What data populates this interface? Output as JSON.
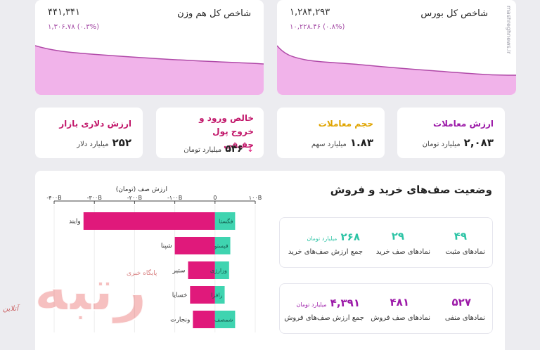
{
  "index_cards": [
    {
      "title": "شاخص کل بورس",
      "value": "۱,۲۸۴,۲۹۳",
      "change": "۱۰,۲۲۸.۴۶ (۰.۸%)"
    },
    {
      "title": "شاخص کل هم وزن",
      "value": "۴۴۱,۳۴۱",
      "change": "۱,۳۰۶.۷۸ (۰.۳%)"
    }
  ],
  "stat_cards": [
    {
      "title": "ارزش معاملات",
      "value": "۲,۰۸۳",
      "unit": "میلیارد تومان",
      "title_color": "#9c1aa8"
    },
    {
      "title": "حجم معاملات",
      "value": "۱.۸۳",
      "unit": "میلیارد سهم",
      "title_color": "#e0a400"
    },
    {
      "title": "خالص ورود و خروج پول حقیقی",
      "value": "۵۴۶",
      "unit": "میلیارد تومان",
      "arrow": "↓",
      "title_color": "#c2186b"
    },
    {
      "title": "ارزش دلاری بازار",
      "value": "۲۵۲",
      "unit": "میلیارد دلار",
      "title_color": "#c2186b"
    }
  ],
  "queues": {
    "title": "وضعیت صف‌های خرید و فروش",
    "buy": [
      {
        "value": "۴۹",
        "label": "نمادهای مثبت"
      },
      {
        "value": "۲۹",
        "label": "نمادهای صف خرید"
      },
      {
        "value": "۲۶۸",
        "unit": "میلیارد تومان",
        "label": "جمع ارزش صف‌های خرید"
      }
    ],
    "sell": [
      {
        "value": "۵۲۷",
        "label": "نمادهای منفی"
      },
      {
        "value": "۴۸۱",
        "label": "نمادهای صف فروش"
      },
      {
        "value": "۴,۳۹۱",
        "unit": "میلیارد تومان",
        "label": "جمع ارزش صف‌های فروش"
      }
    ]
  },
  "chart_data": {
    "type": "bar",
    "title": "ارزش صف (تومان)",
    "x_ticks": [
      "-۴۰۰B",
      "-۳۰۰B",
      "-۲۰۰B",
      "-۱۰۰B",
      "0",
      "۱۰۰B"
    ],
    "xlim": [
      -400,
      100
    ],
    "rows": [
      {
        "buy_label": "فگستا",
        "buy": 50,
        "sell_label": "وایند",
        "sell": -327
      },
      {
        "buy_label": "قیستو",
        "buy": 38,
        "sell_label": "شپنا",
        "sell": -100
      },
      {
        "buy_label": "وزارژی",
        "buy": 35,
        "sell_label": "ستیر",
        "sell": -67
      },
      {
        "buy_label": "رافزا",
        "buy": 24,
        "sell_label": "خسایا",
        "sell": -62
      },
      {
        "buy_label": "شمصف",
        "buy": 50,
        "sell_label": "ونجارت",
        "sell": -55
      }
    ],
    "colors": {
      "buy": "#3fd4b0",
      "sell": "#e0197b"
    }
  },
  "logo_text": "رتبه",
  "logo_sub": "آنلاین",
  "logo_small": "پایگاه خبری",
  "watermark": "mashreghnews.ir"
}
